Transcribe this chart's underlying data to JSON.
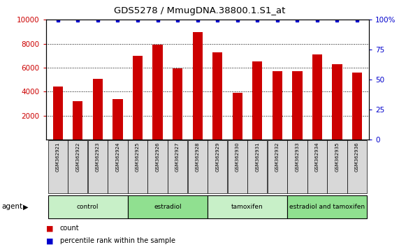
{
  "title": "GDS5278 / MmugDNA.38800.1.S1_at",
  "samples": [
    "GSM362921",
    "GSM362922",
    "GSM362923",
    "GSM362924",
    "GSM362925",
    "GSM362926",
    "GSM362927",
    "GSM362928",
    "GSM362929",
    "GSM362930",
    "GSM362931",
    "GSM362932",
    "GSM362933",
    "GSM362934",
    "GSM362935",
    "GSM362936"
  ],
  "counts": [
    4400,
    3200,
    5050,
    3350,
    7000,
    7950,
    5950,
    8950,
    7300,
    3900,
    6550,
    5700,
    5700,
    7100,
    6300,
    5600
  ],
  "groups": [
    {
      "label": "control",
      "start": 0,
      "end": 4,
      "color": "#c8f0c8"
    },
    {
      "label": "estradiol",
      "start": 4,
      "end": 8,
      "color": "#90e090"
    },
    {
      "label": "tamoxifen",
      "start": 8,
      "end": 12,
      "color": "#c8f0c8"
    },
    {
      "label": "estradiol and tamoxifen",
      "start": 12,
      "end": 16,
      "color": "#90e090"
    }
  ],
  "bar_color": "#cc0000",
  "dot_color": "#0000cc",
  "ylim_left": [
    0,
    10000
  ],
  "ylim_right": [
    0,
    100
  ],
  "yticks_left": [
    2000,
    4000,
    6000,
    8000,
    10000
  ],
  "yticks_right": [
    0,
    25,
    50,
    75,
    100
  ],
  "background_color": "#ffffff",
  "plot_bg_color": "#ffffff",
  "sample_box_color": "#d8d8d8",
  "agent_label": "agent",
  "legend_count_label": "count",
  "legend_percentile_label": "percentile rank within the sample"
}
